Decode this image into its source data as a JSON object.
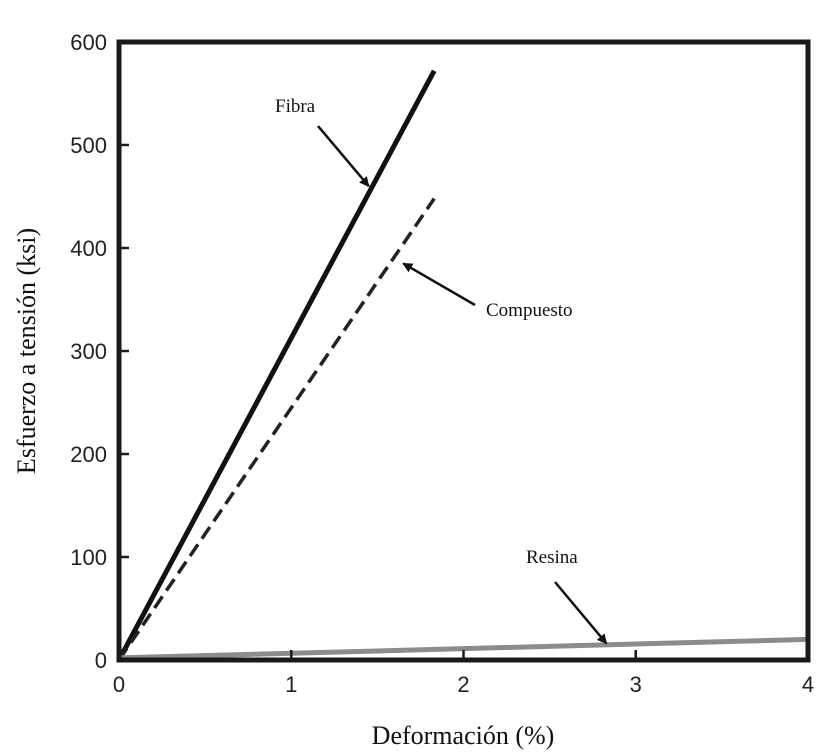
{
  "chart_data": {
    "type": "line",
    "title": "",
    "xlabel": "Deformación (%)",
    "ylabel": "Esfuerzo a tensión (ksi)",
    "xlim": [
      0,
      4
    ],
    "ylim": [
      0,
      600
    ],
    "xticks": [
      0,
      1,
      2,
      3,
      4
    ],
    "yticks": [
      0,
      100,
      200,
      300,
      400,
      500,
      600
    ],
    "grid": false,
    "legend": "none",
    "series": [
      {
        "name": "Fibra",
        "x": [
          0,
          1.83
        ],
        "y": [
          0,
          572
        ],
        "color": "#111111",
        "style": "solid"
      },
      {
        "name": "Compuesto",
        "x": [
          0,
          1.83
        ],
        "y": [
          0,
          448
        ],
        "color": "#222222",
        "style": "dashed"
      },
      {
        "name": "Resina",
        "x": [
          0,
          4
        ],
        "y": [
          2,
          20
        ],
        "color": "#8c8c8c",
        "style": "solid"
      }
    ],
    "annotations": [
      {
        "text": "Fibra",
        "points_to_series": "Fibra",
        "at_x": 1.45,
        "at_y": 460
      },
      {
        "text": "Compuesto",
        "points_to_series": "Compuesto",
        "at_x": 1.65,
        "at_y": 385
      },
      {
        "text": "Resina",
        "points_to_series": "Resina",
        "at_x": 2.83,
        "at_y": 16
      }
    ]
  }
}
